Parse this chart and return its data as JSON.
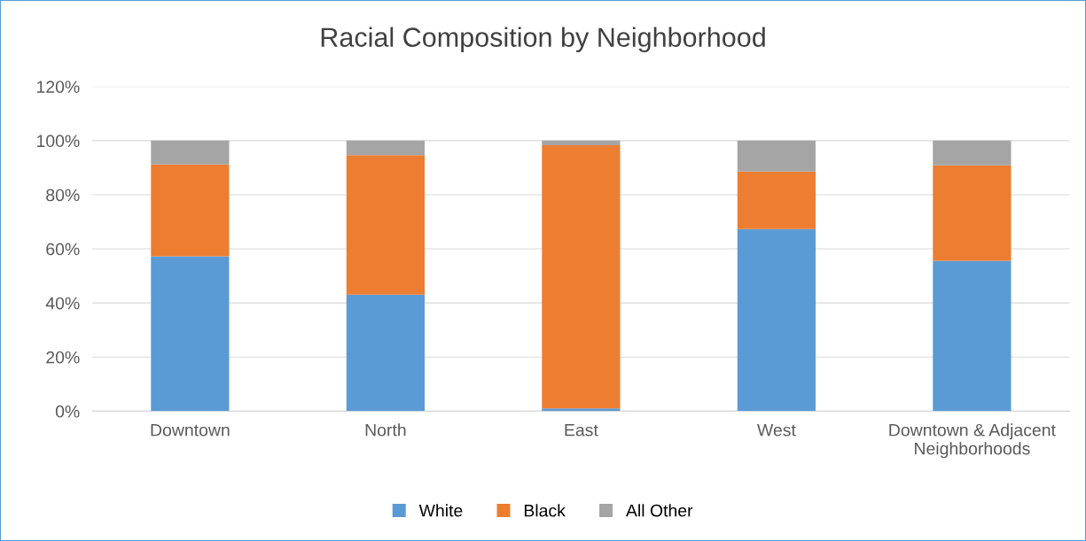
{
  "chart_data": {
    "type": "bar",
    "title": "Racial Composition by Neighborhood",
    "stacked": true,
    "categories": [
      "Downtown",
      "North",
      "East",
      "West",
      "Downtown & Adjacent\nNeighborhoods"
    ],
    "series": [
      {
        "name": "White",
        "color": "#5b9bd5",
        "values": [
          57.2,
          43.1,
          1.0,
          67.3,
          55.6
        ]
      },
      {
        "name": "Black",
        "color": "#ed7d31",
        "values": [
          34.0,
          51.5,
          97.3,
          21.3,
          35.3
        ]
      },
      {
        "name": "All Other",
        "color": "#a5a5a5",
        "values": [
          8.8,
          5.4,
          1.7,
          11.4,
          9.1
        ]
      }
    ],
    "ylim": [
      0,
      120
    ],
    "yticks": [
      {
        "value": 0,
        "label": "0%"
      },
      {
        "value": 20,
        "label": "20%"
      },
      {
        "value": 40,
        "label": "40%"
      },
      {
        "value": 60,
        "label": "60%"
      },
      {
        "value": 80,
        "label": "80%"
      },
      {
        "value": 100,
        "label": "100%"
      },
      {
        "value": 120,
        "label": "120%"
      }
    ],
    "grid": "y",
    "legend": "bottom"
  }
}
